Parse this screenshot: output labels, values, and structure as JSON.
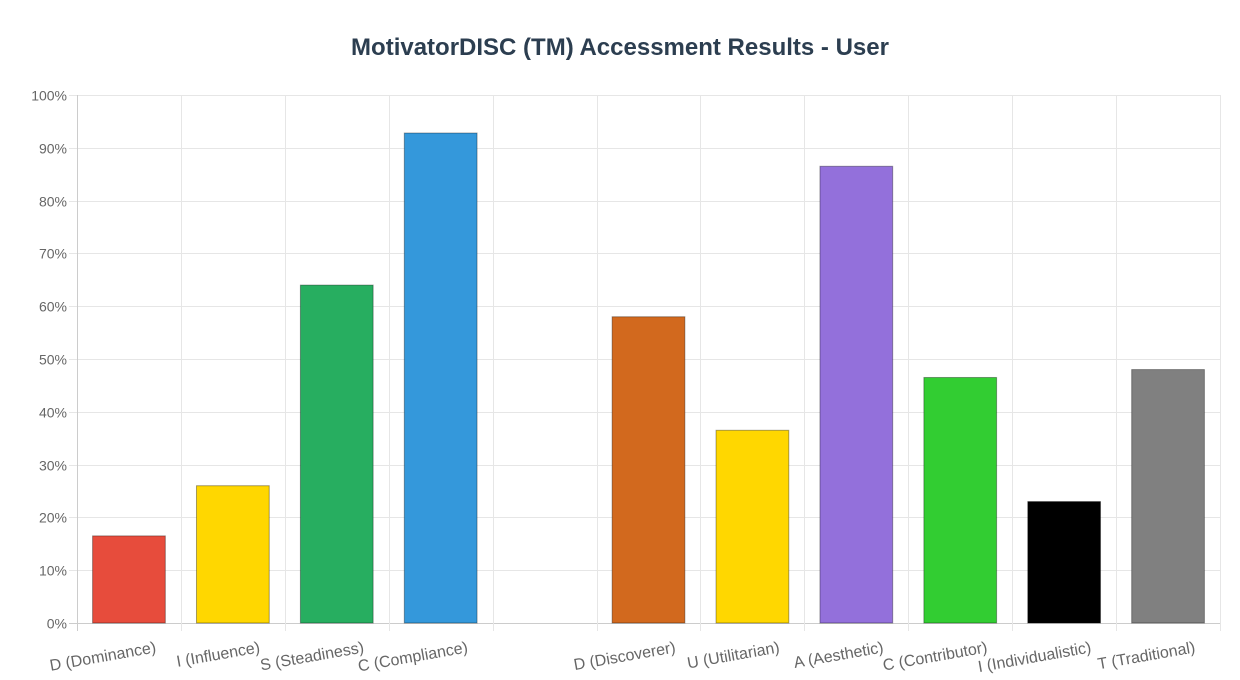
{
  "chart_data": {
    "type": "bar",
    "title": "MotivatorDISC (TM) Accessment Results - User",
    "categories": [
      "D (Dominance)",
      "I (Influence)",
      "S (Steadiness)",
      "C (Compliance)",
      "",
      "D (Discoverer)",
      "U (Utilitarian)",
      "A (Aesthetic)",
      "C (Contributor)",
      "I (Individualistic)",
      "T (Traditional)"
    ],
    "values": [
      16.5,
      26,
      64,
      92.8,
      null,
      58,
      36.5,
      86.5,
      46.5,
      23,
      48
    ],
    "colors": [
      "#e74c3c",
      "#ffd700",
      "#27ae60",
      "#3498db",
      null,
      "#d2691e",
      "#ffd700",
      "#9370db",
      "#32cd32",
      "#000000",
      "#808080"
    ],
    "ylim": [
      0,
      100
    ],
    "y_ticks": [
      "0%",
      "10%",
      "20%",
      "30%",
      "40%",
      "50%",
      "60%",
      "70%",
      "80%",
      "90%",
      "100%"
    ],
    "y_tick_values": [
      0,
      10,
      20,
      30,
      40,
      50,
      60,
      70,
      80,
      90,
      100
    ],
    "grid": true,
    "legend": "none"
  }
}
